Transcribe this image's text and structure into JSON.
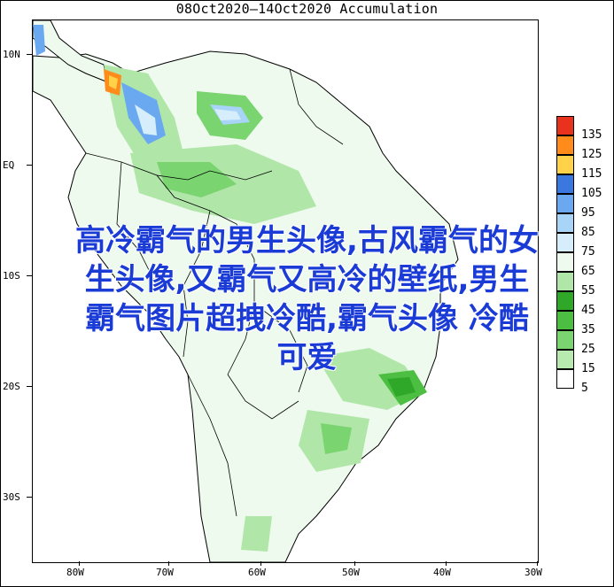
{
  "title": "08Oct2020—14Oct2020 Accumulation",
  "lat_labels": [
    "10N",
    "EQ",
    "10S",
    "20S",
    "30S"
  ],
  "lon_labels": [
    "80W",
    "70W",
    "60W",
    "50W",
    "40W",
    "30W"
  ],
  "legend": {
    "labels": [
      "135",
      "125",
      "115",
      "105",
      "95",
      "85",
      "75",
      "65",
      "55",
      "45",
      "35",
      "25",
      "15",
      "5"
    ],
    "colors": [
      "#e8321e",
      "#ff8c1a",
      "#ffd24a",
      "#3a78e0",
      "#6aa8f0",
      "#a8d4f8",
      "#d6eefc",
      "#eefaee",
      "#b0e6a8",
      "#2fa82a",
      "#4cbe42",
      "#7ad470",
      "#b8eab0",
      "#ffffff"
    ]
  },
  "watermark": {
    "line1": "高冷霸气的男生头像,古风霸气的女",
    "line2": "生头像,又霸气又高冷的壁纸,男生",
    "line3": "霸气图片超拽冷酷,霸气头像 冷酷",
    "line4": "可爱"
  }
}
